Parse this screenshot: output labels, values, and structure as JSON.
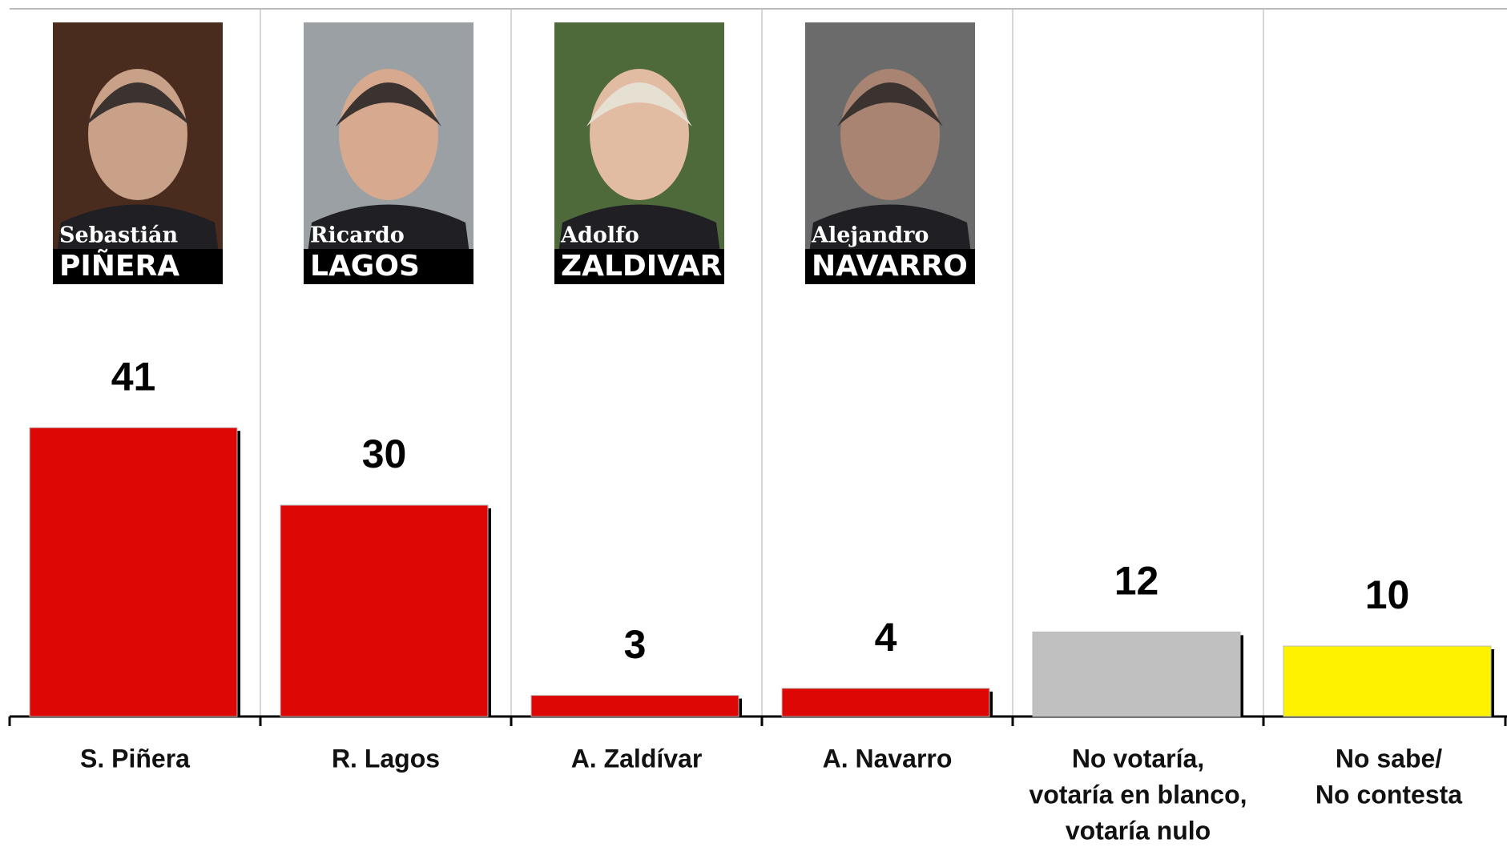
{
  "chart_data": {
    "type": "bar",
    "categories": [
      [
        "S. Piñera"
      ],
      [
        "R. Lagos"
      ],
      [
        "A. Zaldívar"
      ],
      [
        "A. Navarro"
      ],
      [
        "No votaría,",
        "votaría en blanco,",
        "votaría nulo"
      ],
      [
        "No sabe/",
        "No contesta"
      ]
    ],
    "values": [
      41,
      30,
      3,
      4,
      12,
      10
    ],
    "colors": [
      "#dd0806",
      "#dd0806",
      "#dd0806",
      "#dd0806",
      "#c0c0c0",
      "#fff200"
    ],
    "portraits": [
      {
        "first": "Sebastián",
        "last": "PIÑERA"
      },
      {
        "first": "Ricardo",
        "last": "LAGOS"
      },
      {
        "first": "Adolfo",
        "last": "ZALDIVAR"
      },
      {
        "first": "Alejandro",
        "last": "NAVARRO"
      }
    ]
  }
}
